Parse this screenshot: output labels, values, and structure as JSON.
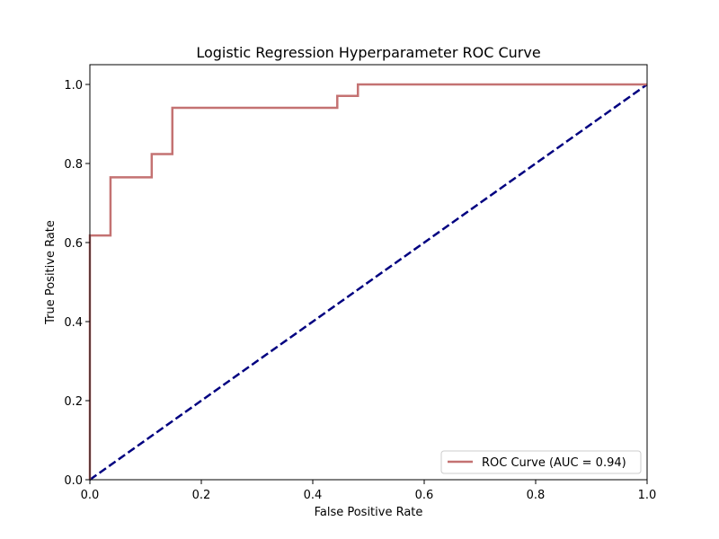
{
  "chart_data": {
    "type": "line",
    "title": "Logistic Regression Hyperparameter ROC Curve",
    "xlabel": "False Positive Rate",
    "ylabel": "True Positive Rate",
    "xlim": [
      0.0,
      1.0
    ],
    "ylim": [
      0.0,
      1.05
    ],
    "x_ticks": [
      "0.0",
      "0.2",
      "0.4",
      "0.6",
      "0.8",
      "1.0"
    ],
    "y_ticks": [
      "0.0",
      "0.2",
      "0.4",
      "0.6",
      "0.8",
      "1.0"
    ],
    "grid": false,
    "legend_position": "lower-right",
    "series": [
      {
        "name": "ROC Curve (AUC = 0.94)",
        "color": "#c47272",
        "style": "step",
        "points": [
          [
            0.0,
            0.0
          ],
          [
            0.0,
            0.618
          ],
          [
            0.037,
            0.618
          ],
          [
            0.037,
            0.765
          ],
          [
            0.111,
            0.765
          ],
          [
            0.111,
            0.824
          ],
          [
            0.148,
            0.824
          ],
          [
            0.148,
            0.941
          ],
          [
            0.444,
            0.941
          ],
          [
            0.444,
            0.971
          ],
          [
            0.481,
            0.971
          ],
          [
            0.481,
            1.0
          ],
          [
            1.0,
            1.0
          ]
        ]
      },
      {
        "color": "#000080",
        "style": "dashed",
        "points": [
          [
            0.0,
            0.0
          ],
          [
            1.0,
            1.0
          ]
        ]
      }
    ]
  }
}
